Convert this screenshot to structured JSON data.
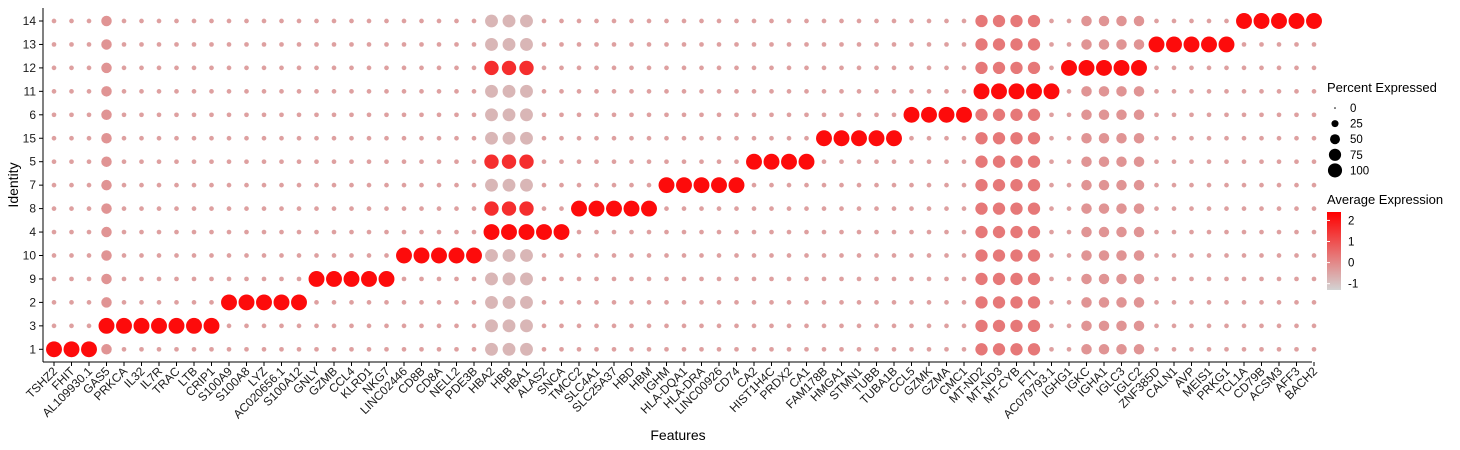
{
  "chart_data": {
    "type": "dotplot",
    "xlabel": "Features",
    "ylabel": "Identity",
    "features": [
      "TSHZ2",
      "FHIT",
      "AL109930.1",
      "GAS5",
      "PRKCA",
      "IL32",
      "IL7R",
      "TRAC",
      "LTB",
      "CRIP1",
      "S100A9",
      "S100A8",
      "LYZ",
      "AC020656.1",
      "S100A12",
      "GNLY",
      "GZMB",
      "CCL4",
      "KLRD1",
      "NKG7",
      "LINC02446",
      "CD8B",
      "CD8A",
      "NELL2",
      "PDE3B",
      "HBA2",
      "HBB",
      "HBA1",
      "ALAS2",
      "SNCA",
      "TMCC2",
      "SLC4A1",
      "SLC25A37",
      "HBD",
      "HBM",
      "IGHM",
      "HLA-DQA1",
      "HLA-DRA",
      "LINC00926",
      "CD74",
      "CA2",
      "HIST1H4C",
      "PRDX2",
      "CA1",
      "FAM178B",
      "HMGA1",
      "STMN1",
      "TUBB",
      "TUBA1B",
      "CCL5",
      "GZMK",
      "GZMA",
      "CMC1",
      "MT-ND2",
      "MT-ND3",
      "MT-CYB",
      "FTL",
      "AC079793.1",
      "IGHG1",
      "IGKC",
      "IGHA1",
      "IGLC3",
      "IGLC2",
      "ZNF385D",
      "CALN1",
      "AVP",
      "MEIS1",
      "PRKG1",
      "TCL1A",
      "CD79B",
      "ACSM3",
      "AFF3",
      "BACH2"
    ],
    "identities": [
      "14",
      "13",
      "12",
      "11",
      "6",
      "15",
      "5",
      "7",
      "8",
      "4",
      "10",
      "9",
      "2",
      "3",
      "1"
    ],
    "blocks": {
      "1": [
        0,
        1,
        2
      ],
      "3": [
        3,
        4,
        5,
        6,
        7,
        8,
        9
      ],
      "2": [
        10,
        11,
        12,
        13,
        14
      ],
      "9": [
        15,
        16,
        17,
        18,
        19
      ],
      "10": [
        20,
        21,
        22,
        23,
        24
      ],
      "4": [
        25,
        26,
        27,
        28,
        29
      ],
      "8": [
        30,
        31,
        32,
        33,
        34
      ],
      "7": [
        35,
        36,
        37,
        38,
        39
      ],
      "5": [
        40,
        41,
        42,
        43
      ],
      "15": [
        44,
        45,
        46,
        47,
        48
      ],
      "6": [
        49,
        50,
        51,
        52
      ],
      "11": [
        53,
        54,
        55,
        56,
        57
      ],
      "12": [
        58,
        59,
        60,
        61,
        62
      ],
      "13": [
        63,
        64,
        65,
        66,
        67
      ],
      "14": [
        68,
        69,
        70,
        71,
        72
      ]
    },
    "special": {
      "hemoglobin_features": [
        25,
        26,
        27
      ],
      "mito_features": [
        53,
        54,
        55,
        56
      ],
      "ribosomal_like_features": [
        3,
        59,
        60,
        61,
        62
      ]
    },
    "legend": {
      "size_title": "Percent Expressed",
      "size_levels": [
        0,
        25,
        50,
        75,
        100
      ],
      "size_labels": [
        "0",
        "25",
        "50",
        "75",
        "100"
      ],
      "color_title": "Average Expression",
      "color_ticks": [
        2,
        1,
        0,
        -1
      ],
      "color_tick_labels": [
        "2",
        "1",
        "0",
        "-1"
      ],
      "color_range": [
        -1.3,
        2.4
      ],
      "color_low": "#d3d3d3",
      "color_high": "#ff0000"
    }
  }
}
